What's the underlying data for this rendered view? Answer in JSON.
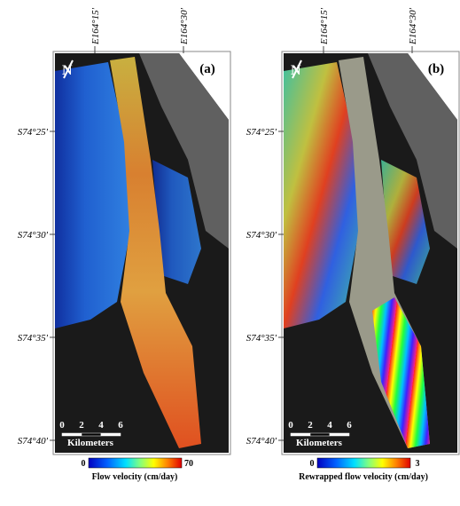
{
  "figure": {
    "panels": [
      {
        "label": "(a)",
        "north": "N",
        "longitude_labels": [
          "E164°15′",
          "E164°30′"
        ],
        "latitude_labels": [
          "S74°25′",
          "S74°30′",
          "S74°35′",
          "S74°40′"
        ],
        "scale_bar": {
          "ticks": [
            "0",
            "2",
            "4",
            "6"
          ],
          "unit": "Kilometers"
        },
        "colorbar": {
          "min": "0",
          "max": "70",
          "title": "Flow velocity (cm/day)"
        }
      },
      {
        "label": "(b)",
        "north": "N",
        "longitude_labels": [
          "E164°15′",
          "E164°30′"
        ],
        "latitude_labels": [
          "S74°25′",
          "S74°30′",
          "S74°35′",
          "S74°40′"
        ],
        "scale_bar": {
          "ticks": [
            "0",
            "2",
            "4",
            "6"
          ],
          "unit": "Kilometers"
        },
        "colorbar": {
          "min": "0",
          "max": "3",
          "title": "Rewrapped flow velocity (cm/day)"
        }
      }
    ]
  }
}
